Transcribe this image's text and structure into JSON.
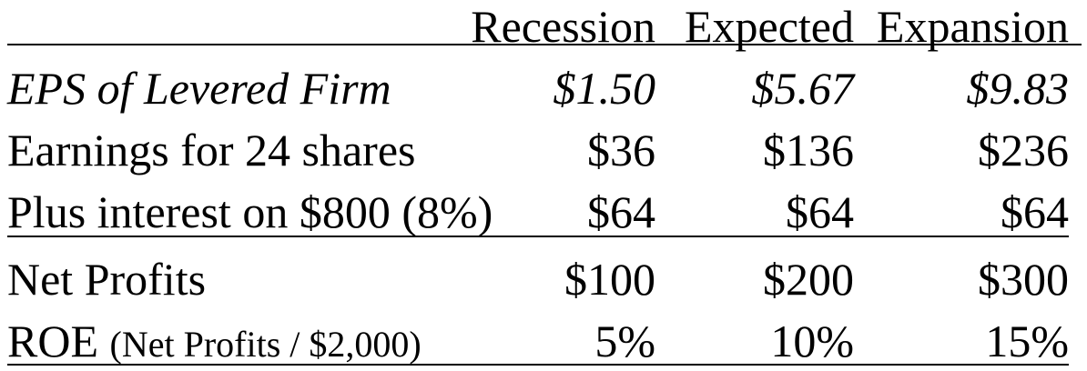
{
  "header": {
    "col1": "Recession",
    "col2": "Expected",
    "col3": "Expansion"
  },
  "rows": [
    {
      "label": "EPS of Levered Firm",
      "values": [
        "$1.50",
        "$5.67",
        "$9.83"
      ],
      "italic": true
    },
    {
      "label": "Earnings for 24 shares",
      "values": [
        "$36",
        "$136",
        "$236"
      ]
    },
    {
      "label": "Plus interest on $800 (8%)",
      "values": [
        "$64",
        "$64",
        "$64"
      ]
    },
    {
      "label": "Net Profits",
      "values": [
        "$100",
        "$200",
        "$300"
      ]
    },
    {
      "label": "ROE",
      "label_note": "(Net Profits / $2,000)",
      "values": [
        "5%",
        "10%",
        "15%"
      ]
    }
  ]
}
